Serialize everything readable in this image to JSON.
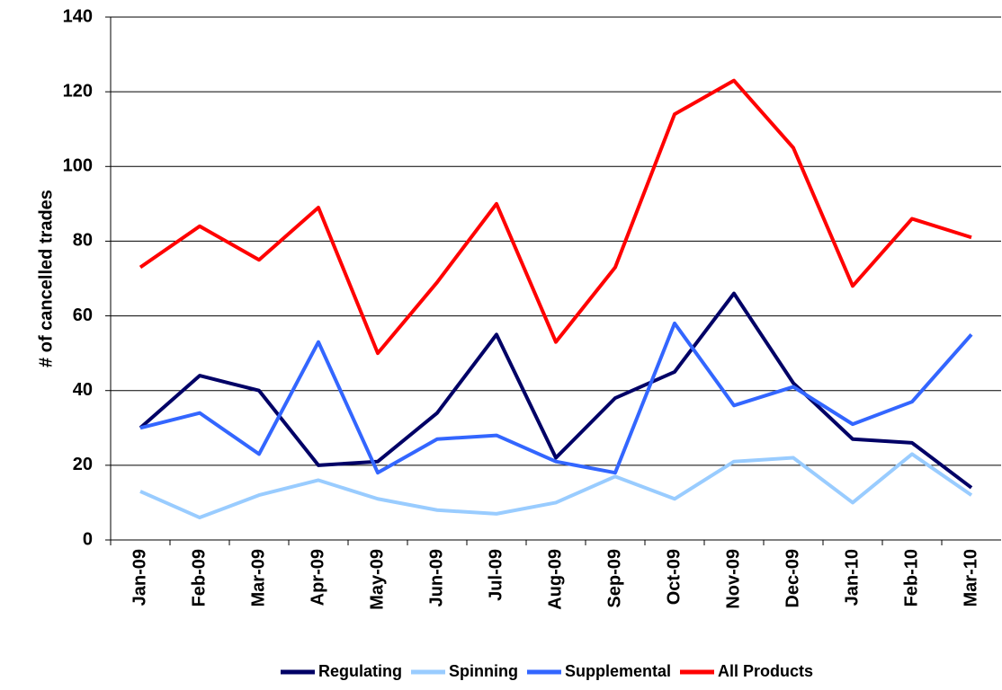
{
  "chart_data": {
    "type": "line",
    "y_label": "# of cancelled trades",
    "categories": [
      "Jan-09",
      "Feb-09",
      "Mar-09",
      "Apr-09",
      "May-09",
      "Jun-09",
      "Jul-09",
      "Aug-09",
      "Sep-09",
      "Oct-09",
      "Nov-09",
      "Dec-09",
      "Jan-10",
      "Feb-10",
      "Mar-10"
    ],
    "series": [
      {
        "name": "Regulating",
        "color": "#000066",
        "values": [
          30,
          44,
          40,
          20,
          21,
          34,
          55,
          22,
          38,
          45,
          66,
          42,
          27,
          26,
          14
        ]
      },
      {
        "name": "Spinning",
        "color": "#99ccff",
        "values": [
          13,
          6,
          12,
          16,
          11,
          8,
          7,
          10,
          17,
          11,
          21,
          22,
          10,
          23,
          12
        ]
      },
      {
        "name": "Supplemental",
        "color": "#3366ff",
        "values": [
          30,
          34,
          23,
          53,
          18,
          27,
          28,
          21,
          18,
          58,
          36,
          41,
          31,
          37,
          55
        ]
      },
      {
        "name": "All Products",
        "color": "#ff0000",
        "values": [
          73,
          84,
          75,
          89,
          50,
          69,
          90,
          53,
          73,
          114,
          123,
          105,
          68,
          86,
          81
        ]
      }
    ],
    "ylim": [
      0,
      140
    ],
    "yticks": [
      0,
      20,
      40,
      60,
      80,
      100,
      120,
      140
    ],
    "grid": true,
    "legend": "bottom"
  }
}
